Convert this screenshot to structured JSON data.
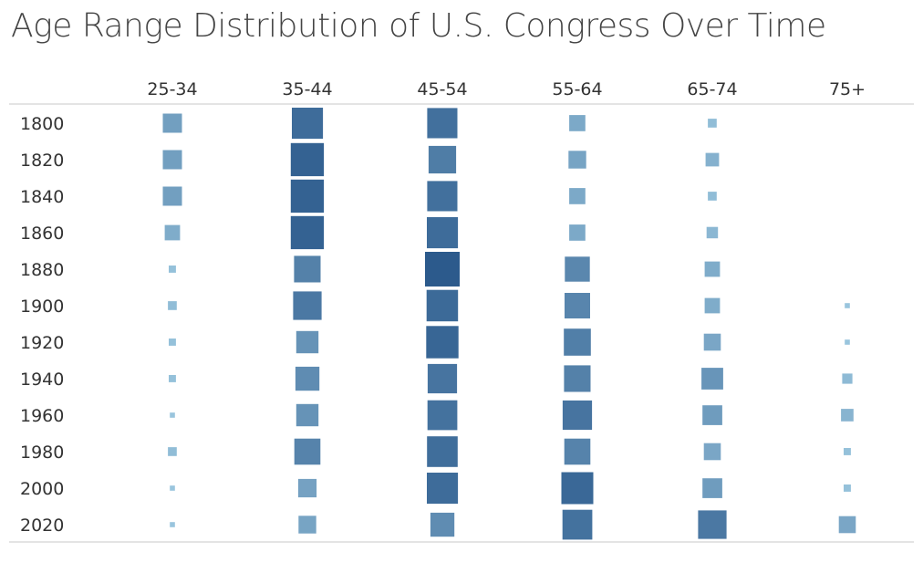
{
  "chart_data": {
    "type": "heatmap",
    "title": "Age Range Distribution of U.S. Congress Over Time",
    "columns": [
      "25-34",
      "35-44",
      "45-54",
      "55-64",
      "65-74",
      "75+"
    ],
    "rows": [
      "1800",
      "1820",
      "1840",
      "1860",
      "1880",
      "1900",
      "1920",
      "1940",
      "1960",
      "1980",
      "2000",
      "2020"
    ],
    "value_unit": "share of members (%)",
    "values": [
      [
        14,
        37,
        35,
        10,
        3,
        0
      ],
      [
        14,
        42,
        29,
        12,
        7,
        0
      ],
      [
        14,
        42,
        35,
        10,
        3,
        0
      ],
      [
        9,
        42,
        37,
        10,
        5,
        0
      ],
      [
        2,
        27,
        46,
        24,
        9,
        0
      ],
      [
        3,
        31,
        38,
        25,
        9,
        1
      ],
      [
        2,
        19,
        40,
        28,
        11,
        1
      ],
      [
        2,
        22,
        33,
        27,
        18,
        4
      ],
      [
        1,
        19,
        34,
        33,
        15,
        6
      ],
      [
        3,
        26,
        36,
        26,
        11,
        2
      ],
      [
        1,
        13,
        37,
        39,
        15,
        2
      ],
      [
        1,
        12,
        22,
        34,
        31,
        11
      ]
    ],
    "color_scale": {
      "low": "#9ecae1",
      "high": "#2c5a8c"
    },
    "grid": false,
    "legend": "none"
  }
}
